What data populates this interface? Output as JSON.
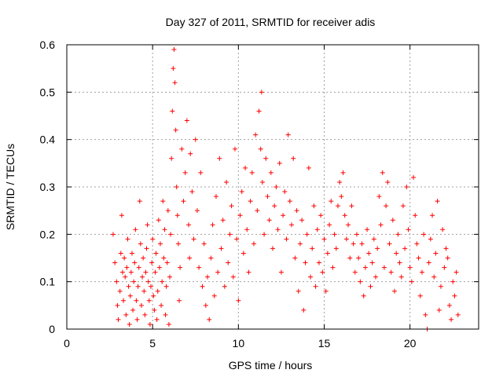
{
  "chart_data": {
    "type": "scatter",
    "title": "Day 327 of 2011, SRMTID for receiver adis",
    "xlabel": "GPS time / hours",
    "ylabel": "SRMTID / TECUs",
    "xlim": [
      0,
      24
    ],
    "ylim": [
      0,
      0.6
    ],
    "xticks": [
      0,
      5,
      10,
      15,
      20
    ],
    "yticks": [
      0,
      0.1,
      0.2,
      0.3,
      0.4,
      0.5,
      0.6
    ],
    "xtick_labels": [
      "0",
      "5",
      "10",
      "15",
      "20"
    ],
    "ytick_labels": [
      "0",
      "0.1",
      "0.2",
      "0.3",
      "0.4",
      "0.5",
      "0.6"
    ],
    "grid": true,
    "marker": "plus",
    "color": "#ff0000",
    "series": [
      {
        "name": "SRMTID",
        "points": [
          [
            2.7,
            0.2
          ],
          [
            2.8,
            0.14
          ],
          [
            2.9,
            0.1
          ],
          [
            2.95,
            0.05
          ],
          [
            3.0,
            0.02
          ],
          [
            3.1,
            0.08
          ],
          [
            3.15,
            0.16
          ],
          [
            3.2,
            0.24
          ],
          [
            3.25,
            0.12
          ],
          [
            3.3,
            0.06
          ],
          [
            3.35,
            0.15
          ],
          [
            3.4,
            0.11
          ],
          [
            3.45,
            0.03
          ],
          [
            3.5,
            0.13
          ],
          [
            3.55,
            0.19
          ],
          [
            3.6,
            0.09
          ],
          [
            3.65,
            0.01
          ],
          [
            3.7,
            0.07
          ],
          [
            3.75,
            0.12
          ],
          [
            3.8,
            0.16
          ],
          [
            3.85,
            0.04
          ],
          [
            3.9,
            0.1
          ],
          [
            3.95,
            0.14
          ],
          [
            4.0,
            0.21
          ],
          [
            4.05,
            0.06
          ],
          [
            4.1,
            0.02
          ],
          [
            4.15,
            0.09
          ],
          [
            4.2,
            0.13
          ],
          [
            4.25,
            0.27
          ],
          [
            4.3,
            0.18
          ],
          [
            4.35,
            0.05
          ],
          [
            4.4,
            0.11
          ],
          [
            4.45,
            0.15
          ],
          [
            4.5,
            0.08
          ],
          [
            4.55,
            0.03
          ],
          [
            4.6,
            0.12
          ],
          [
            4.65,
            0.17
          ],
          [
            4.7,
            0.22
          ],
          [
            4.75,
            0.1
          ],
          [
            4.8,
            0.06
          ],
          [
            4.85,
            0.01
          ],
          [
            4.9,
            0.09
          ],
          [
            4.95,
            0.14
          ],
          [
            5.0,
            0.19
          ],
          [
            5.05,
            0.07
          ],
          [
            5.1,
            0.04
          ],
          [
            5.15,
            0.12
          ],
          [
            5.2,
            0.16
          ],
          [
            5.25,
            0.02
          ],
          [
            5.3,
            0.08
          ],
          [
            5.35,
            0.23
          ],
          [
            5.4,
            0.13
          ],
          [
            5.45,
            0.18
          ],
          [
            5.5,
            0.05
          ],
          [
            5.55,
            0.1
          ],
          [
            5.6,
            0.27
          ],
          [
            5.65,
            0.15
          ],
          [
            5.7,
            0.21
          ],
          [
            5.75,
            0.03
          ],
          [
            5.8,
            0.09
          ],
          [
            5.85,
            0.14
          ],
          [
            5.9,
            0.25
          ],
          [
            5.95,
            0.01
          ],
          [
            6.0,
            0.11
          ],
          [
            6.05,
            0.2
          ],
          [
            6.1,
            0.36
          ],
          [
            6.15,
            0.46
          ],
          [
            6.2,
            0.55
          ],
          [
            6.25,
            0.59
          ],
          [
            6.3,
            0.52
          ],
          [
            6.35,
            0.42
          ],
          [
            6.4,
            0.3
          ],
          [
            6.45,
            0.24
          ],
          [
            6.5,
            0.18
          ],
          [
            6.55,
            0.06
          ],
          [
            6.6,
            0.13
          ],
          [
            6.7,
            0.38
          ],
          [
            6.8,
            0.27
          ],
          [
            6.9,
            0.33
          ],
          [
            7.0,
            0.44
          ],
          [
            7.1,
            0.22
          ],
          [
            7.15,
            0.15
          ],
          [
            7.2,
            0.37
          ],
          [
            7.3,
            0.29
          ],
          [
            7.4,
            0.19
          ],
          [
            7.5,
            0.4
          ],
          [
            7.6,
            0.25
          ],
          [
            7.7,
            0.13
          ],
          [
            7.8,
            0.33
          ],
          [
            7.9,
            0.09
          ],
          [
            8.0,
            0.18
          ],
          [
            8.1,
            0.05
          ],
          [
            8.2,
            0.11
          ],
          [
            8.3,
            0.02
          ],
          [
            8.4,
            0.15
          ],
          [
            8.5,
            0.22
          ],
          [
            8.6,
            0.07
          ],
          [
            8.7,
            0.28
          ],
          [
            8.8,
            0.12
          ],
          [
            8.9,
            0.36
          ],
          [
            9.0,
            0.17
          ],
          [
            9.1,
            0.23
          ],
          [
            9.2,
            0.09
          ],
          [
            9.3,
            0.31
          ],
          [
            9.4,
            0.14
          ],
          [
            9.5,
            0.2
          ],
          [
            9.6,
            0.26
          ],
          [
            9.7,
            0.11
          ],
          [
            9.8,
            0.38
          ],
          [
            9.9,
            0.19
          ],
          [
            10.0,
            0.06
          ],
          [
            10.1,
            0.24
          ],
          [
            10.2,
            0.29
          ],
          [
            10.3,
            0.16
          ],
          [
            10.4,
            0.34
          ],
          [
            10.5,
            0.21
          ],
          [
            10.6,
            0.12
          ],
          [
            10.7,
            0.27
          ],
          [
            10.8,
            0.33
          ],
          [
            10.9,
            0.18
          ],
          [
            11.0,
            0.41
          ],
          [
            11.1,
            0.25
          ],
          [
            11.2,
            0.46
          ],
          [
            11.3,
            0.38
          ],
          [
            11.35,
            0.5
          ],
          [
            11.4,
            0.31
          ],
          [
            11.5,
            0.2
          ],
          [
            11.6,
            0.36
          ],
          [
            11.7,
            0.28
          ],
          [
            11.8,
            0.23
          ],
          [
            11.9,
            0.33
          ],
          [
            12.0,
            0.17
          ],
          [
            12.1,
            0.26
          ],
          [
            12.2,
            0.3
          ],
          [
            12.3,
            0.21
          ],
          [
            12.4,
            0.35
          ],
          [
            12.5,
            0.12
          ],
          [
            12.6,
            0.24
          ],
          [
            12.7,
            0.29
          ],
          [
            12.8,
            0.19
          ],
          [
            12.9,
            0.41
          ],
          [
            13.0,
            0.27
          ],
          [
            13.1,
            0.22
          ],
          [
            13.2,
            0.36
          ],
          [
            13.3,
            0.15
          ],
          [
            13.4,
            0.25
          ],
          [
            13.5,
            0.08
          ],
          [
            13.6,
            0.18
          ],
          [
            13.7,
            0.23
          ],
          [
            13.8,
            0.04
          ],
          [
            13.9,
            0.14
          ],
          [
            14.0,
            0.2
          ],
          [
            14.1,
            0.34
          ],
          [
            14.2,
            0.11
          ],
          [
            14.3,
            0.17
          ],
          [
            14.4,
            0.26
          ],
          [
            14.5,
            0.09
          ],
          [
            14.6,
            0.21
          ],
          [
            14.7,
            0.14
          ],
          [
            14.8,
            0.24
          ],
          [
            14.9,
            0.12
          ],
          [
            15.0,
            0.19
          ],
          [
            15.1,
            0.08
          ],
          [
            15.2,
            0.16
          ],
          [
            15.3,
            0.22
          ],
          [
            15.4,
            0.27
          ],
          [
            15.5,
            0.13
          ],
          [
            15.6,
            0.2
          ],
          [
            15.7,
            0.17
          ],
          [
            15.8,
            0.26
          ],
          [
            15.9,
            0.31
          ],
          [
            16.0,
            0.28
          ],
          [
            16.1,
            0.33
          ],
          [
            16.2,
            0.24
          ],
          [
            16.3,
            0.19
          ],
          [
            16.4,
            0.22
          ],
          [
            16.5,
            0.15
          ],
          [
            16.6,
            0.26
          ],
          [
            16.7,
            0.18
          ],
          [
            16.8,
            0.12
          ],
          [
            16.9,
            0.2
          ],
          [
            17.0,
            0.15
          ],
          [
            17.1,
            0.1
          ],
          [
            17.2,
            0.18
          ],
          [
            17.3,
            0.07
          ],
          [
            17.4,
            0.13
          ],
          [
            17.5,
            0.21
          ],
          [
            17.6,
            0.16
          ],
          [
            17.7,
            0.09
          ],
          [
            17.8,
            0.14
          ],
          [
            17.9,
            0.19
          ],
          [
            18.0,
            0.11
          ],
          [
            18.1,
            0.17
          ],
          [
            18.2,
            0.28
          ],
          [
            18.3,
            0.22
          ],
          [
            18.4,
            0.33
          ],
          [
            18.5,
            0.13
          ],
          [
            18.6,
            0.26
          ],
          [
            18.7,
            0.31
          ],
          [
            18.8,
            0.18
          ],
          [
            18.9,
            0.12
          ],
          [
            19.0,
            0.23
          ],
          [
            19.1,
            0.08
          ],
          [
            19.2,
            0.16
          ],
          [
            19.3,
            0.2
          ],
          [
            19.4,
            0.14
          ],
          [
            19.5,
            0.11
          ],
          [
            19.6,
            0.26
          ],
          [
            19.7,
            0.17
          ],
          [
            19.8,
            0.3
          ],
          [
            19.9,
            0.21
          ],
          [
            20.0,
            0.13
          ],
          [
            20.1,
            0.1
          ],
          [
            20.2,
            0.32
          ],
          [
            20.3,
            0.24
          ],
          [
            20.4,
            0.18
          ],
          [
            20.5,
            0.15
          ],
          [
            20.6,
            0.07
          ],
          [
            20.7,
            0.12
          ],
          [
            20.8,
            0.2
          ],
          [
            20.9,
            0.03
          ],
          [
            21.0,
            0.0
          ],
          [
            21.1,
            0.14
          ],
          [
            21.2,
            0.19
          ],
          [
            21.3,
            0.24
          ],
          [
            21.4,
            0.11
          ],
          [
            21.5,
            0.16
          ],
          [
            21.6,
            0.27
          ],
          [
            21.7,
            0.04
          ],
          [
            21.8,
            0.09
          ],
          [
            21.9,
            0.21
          ],
          [
            22.0,
            0.13
          ],
          [
            22.1,
            0.17
          ],
          [
            22.2,
            0.15
          ],
          [
            22.3,
            0.05
          ],
          [
            22.4,
            0.02
          ],
          [
            22.5,
            0.1
          ],
          [
            22.6,
            0.07
          ],
          [
            22.7,
            0.12
          ],
          [
            22.8,
            0.03
          ]
        ]
      }
    ]
  }
}
